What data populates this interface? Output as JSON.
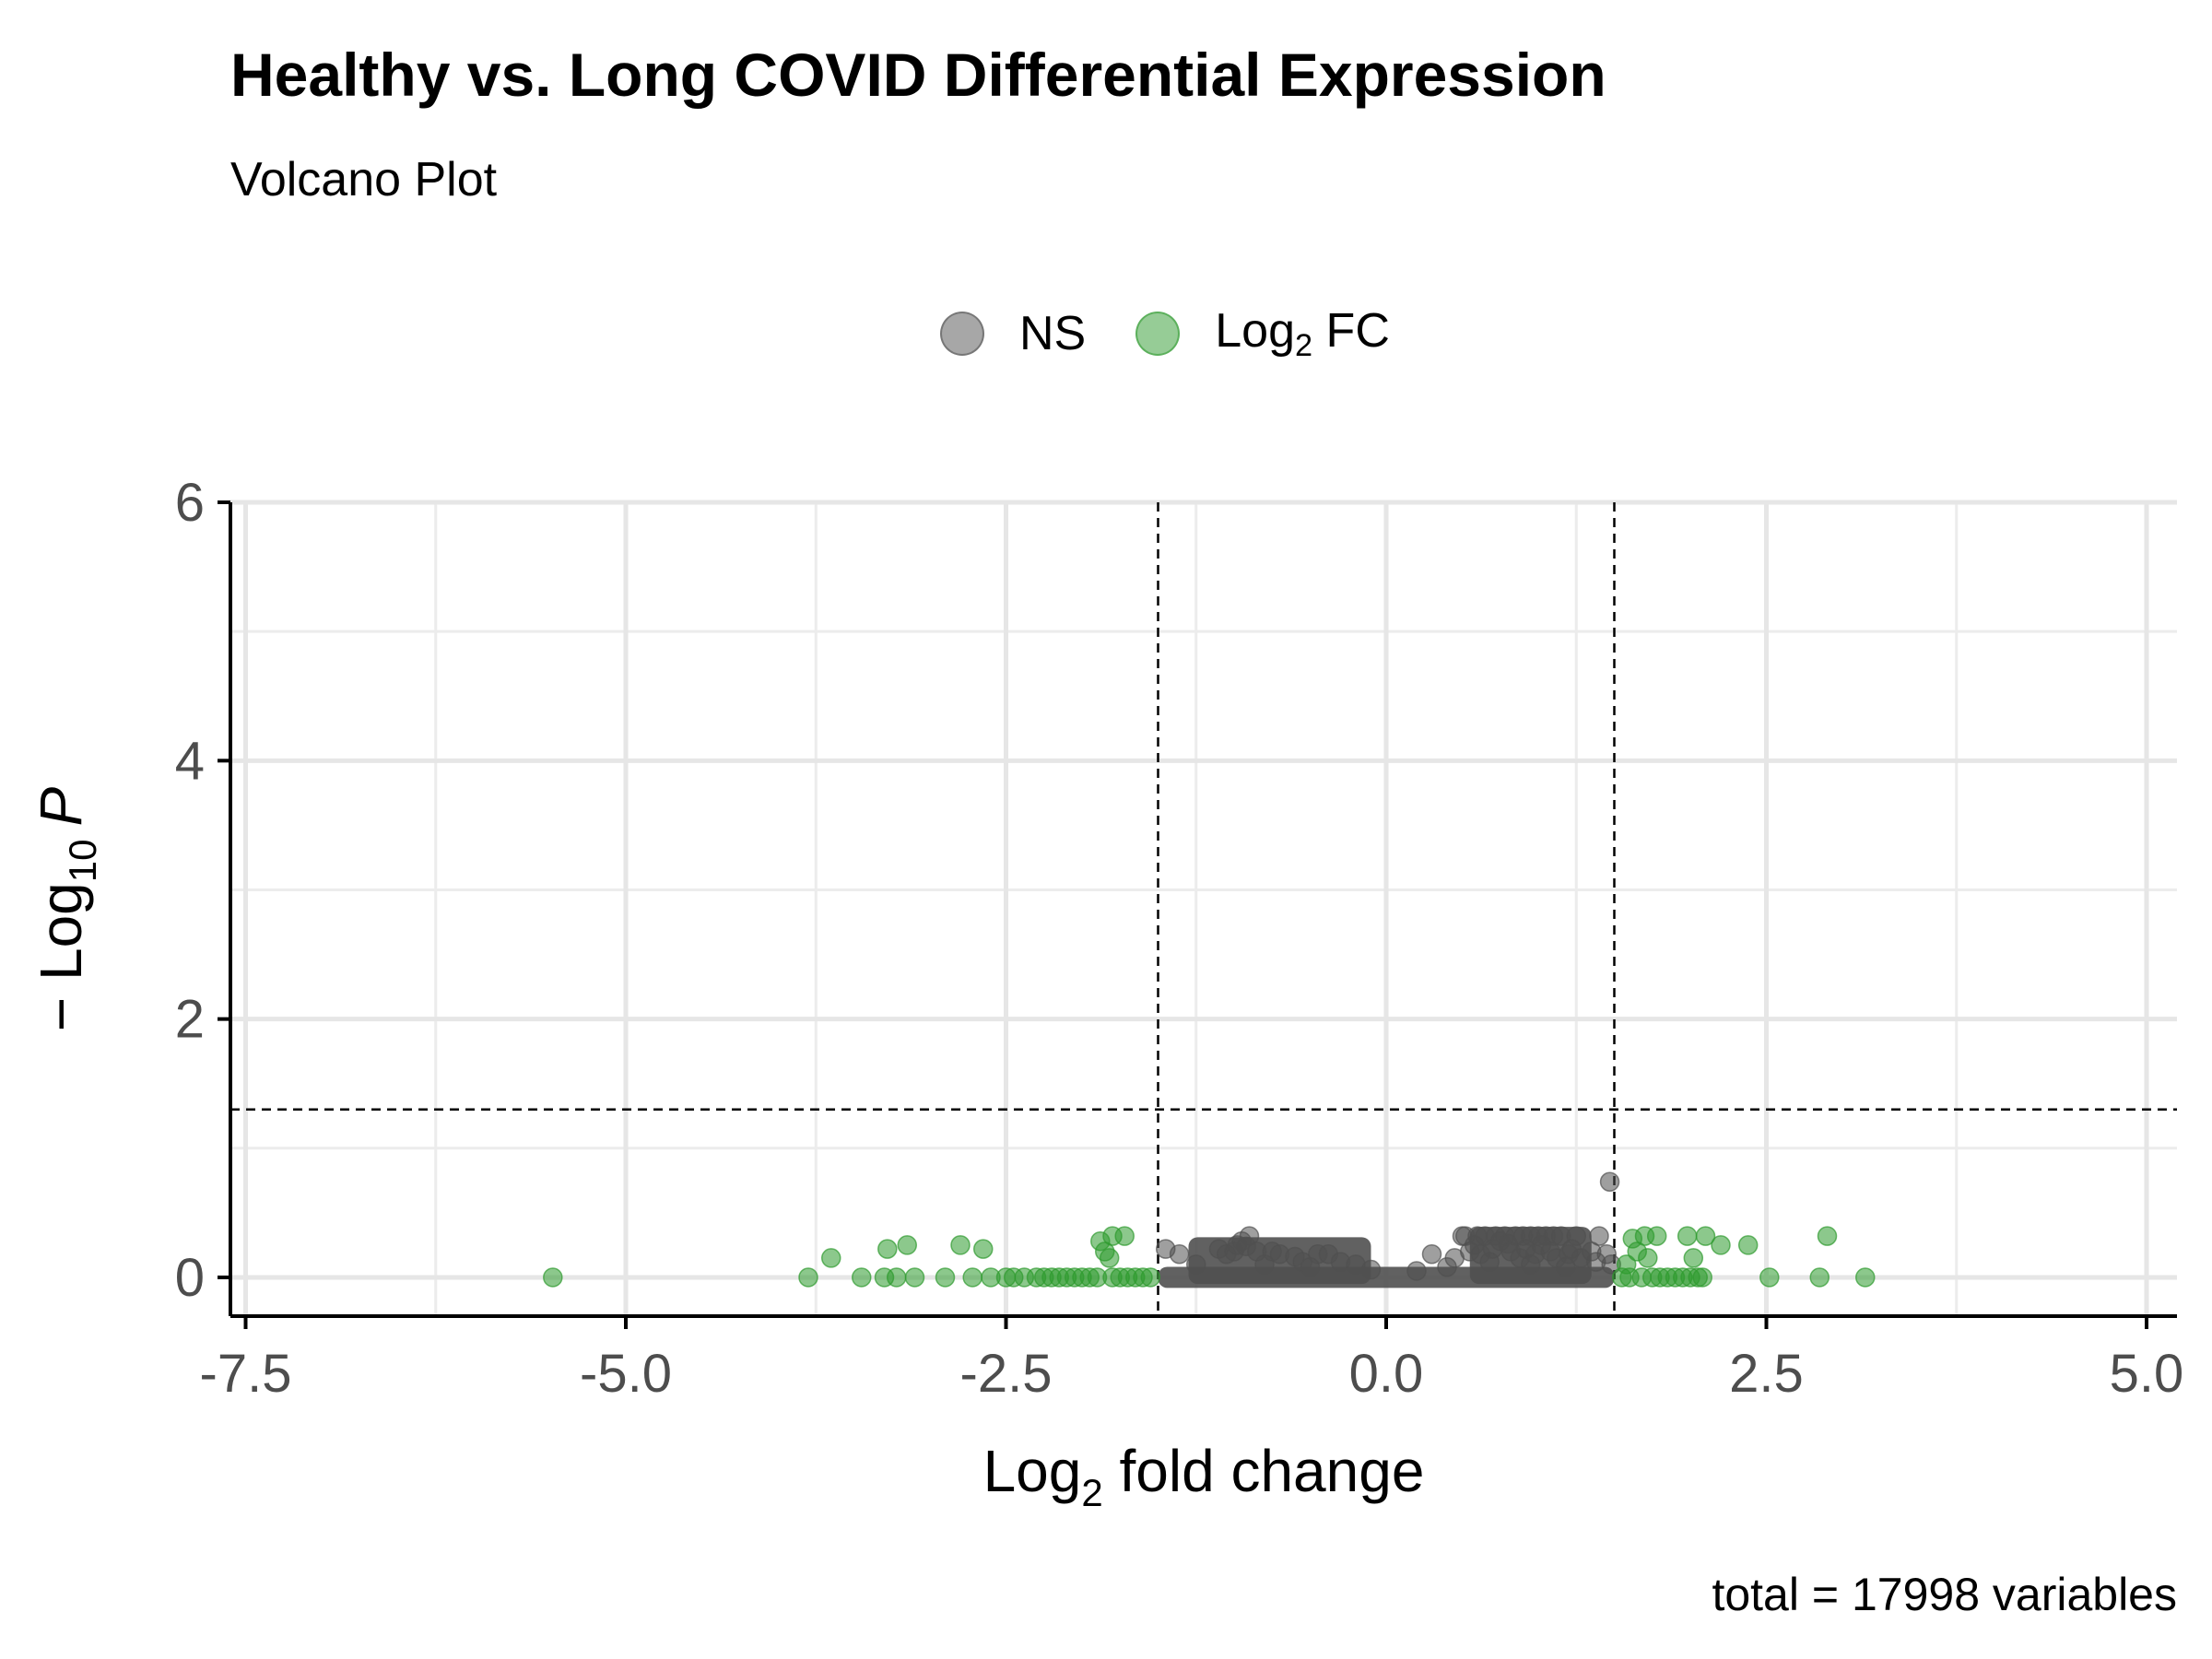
{
  "chart_data": {
    "type": "scatter",
    "title": "Healthy vs. Long COVID Differential Expression",
    "subtitle": "Volcano Plot",
    "caption": "total = 17998 variables",
    "xlabel": "Log2 fold change",
    "xlabel_main": "Log",
    "xlabel_sub": "2",
    "xlabel_rest": " fold change",
    "ylabel": "− Log10 P",
    "ylabel_main": "− Log",
    "ylabel_sub": "10",
    "ylabel_rest": "P",
    "xlim": [
      -7.6,
      5.2
    ],
    "ylim": [
      -0.3,
      6.0
    ],
    "x_ticks": [
      -7.5,
      -5.0,
      -2.5,
      0.0,
      2.5,
      5.0
    ],
    "x_tick_labels": [
      "-7.5",
      "-5.0",
      "-2.5",
      "0.0",
      "2.5",
      "5.0"
    ],
    "y_ticks": [
      0,
      2,
      4,
      6
    ],
    "y_tick_labels": [
      "0",
      "2",
      "4",
      "6"
    ],
    "grid": true,
    "legend_position": "top",
    "fc_cutoff": 1.5,
    "p_cutoff_line": 1.3,
    "series": [
      {
        "name": "NS",
        "color": "#505050",
        "dense_bands": [
          {
            "x": [
              -1.5,
              1.5
            ],
            "y": [
              -0.01,
              0.01
            ]
          },
          {
            "x": [
              0.55,
              1.35
            ],
            "y": [
              0.02,
              0.32
            ]
          },
          {
            "x": [
              -1.3,
              -0.1
            ],
            "y": [
              0.02,
              0.24
            ]
          }
        ],
        "points": [
          [
            1.47,
            0.74
          ],
          [
            0.5,
            0.32
          ],
          [
            0.52,
            0.32
          ],
          [
            0.6,
            0.32
          ],
          [
            0.65,
            0.32
          ],
          [
            0.72,
            0.32
          ],
          [
            0.78,
            0.32
          ],
          [
            0.85,
            0.32
          ],
          [
            0.9,
            0.32
          ],
          [
            0.95,
            0.32
          ],
          [
            1.0,
            0.32
          ],
          [
            1.05,
            0.32
          ],
          [
            1.1,
            0.32
          ],
          [
            1.15,
            0.32
          ],
          [
            1.25,
            0.32
          ],
          [
            1.4,
            0.32
          ],
          [
            -0.9,
            0.32
          ],
          [
            -0.95,
            0.28
          ],
          [
            -1.45,
            0.22
          ],
          [
            -1.36,
            0.18
          ],
          [
            -1.1,
            0.22
          ],
          [
            -1.05,
            0.18
          ],
          [
            -1.0,
            0.2
          ],
          [
            -0.98,
            0.25
          ],
          [
            -0.92,
            0.24
          ],
          [
            -0.85,
            0.2
          ],
          [
            -0.75,
            0.2
          ],
          [
            -0.7,
            0.18
          ],
          [
            -0.6,
            0.16
          ],
          [
            -0.55,
            0.12
          ],
          [
            -0.45,
            0.18
          ],
          [
            -0.38,
            0.18
          ],
          [
            -0.3,
            0.12
          ],
          [
            -0.2,
            0.1
          ],
          [
            -0.1,
            0.06
          ],
          [
            0.3,
            0.18
          ],
          [
            0.45,
            0.15
          ],
          [
            0.55,
            0.2
          ],
          [
            0.58,
            0.25
          ],
          [
            0.62,
            0.18
          ],
          [
            0.7,
            0.22
          ],
          [
            0.75,
            0.28
          ],
          [
            0.8,
            0.26
          ],
          [
            0.82,
            0.2
          ],
          [
            0.88,
            0.15
          ],
          [
            0.92,
            0.22
          ],
          [
            0.98,
            0.18
          ],
          [
            1.02,
            0.25
          ],
          [
            1.08,
            0.2
          ],
          [
            1.12,
            0.15
          ],
          [
            1.2,
            0.18
          ],
          [
            1.22,
            0.22
          ],
          [
            1.28,
            0.15
          ],
          [
            1.35,
            0.2
          ],
          [
            1.45,
            0.18
          ],
          [
            1.48,
            0.1
          ],
          [
            1.38,
            0.12
          ],
          [
            0.68,
            0.12
          ],
          [
            0.95,
            0.1
          ],
          [
            1.18,
            0.08
          ],
          [
            -1.25,
            0.1
          ],
          [
            -0.8,
            0.1
          ],
          [
            -0.5,
            0.08
          ],
          [
            0.2,
            0.05
          ],
          [
            0.4,
            0.08
          ]
        ]
      },
      {
        "name": "Log2 FC",
        "legend_main": "Log",
        "legend_sub": "2",
        "legend_rest": " FC",
        "color": "#2e9a2e",
        "points": [
          [
            -5.48,
            0.0
          ],
          [
            -3.8,
            0.0
          ],
          [
            -3.65,
            0.15
          ],
          [
            -3.45,
            0.0
          ],
          [
            -3.3,
            0.0
          ],
          [
            -3.28,
            0.22
          ],
          [
            -3.22,
            0.0
          ],
          [
            -3.15,
            0.25
          ],
          [
            -3.1,
            0.0
          ],
          [
            -2.9,
            0.0
          ],
          [
            -2.8,
            0.25
          ],
          [
            -2.72,
            0.0
          ],
          [
            -2.65,
            0.22
          ],
          [
            -2.6,
            0.0
          ],
          [
            -2.5,
            0.0
          ],
          [
            -2.45,
            0.0
          ],
          [
            -2.38,
            0.0
          ],
          [
            -2.3,
            0.0
          ],
          [
            -2.25,
            0.0
          ],
          [
            -2.2,
            0.0
          ],
          [
            -2.15,
            0.0
          ],
          [
            -2.1,
            0.0
          ],
          [
            -2.05,
            0.0
          ],
          [
            -2.0,
            0.0
          ],
          [
            -1.95,
            0.0
          ],
          [
            -1.9,
            0.0
          ],
          [
            -1.88,
            0.28
          ],
          [
            -1.85,
            0.2
          ],
          [
            -1.82,
            0.15
          ],
          [
            -1.8,
            0.32
          ],
          [
            -1.8,
            0.0
          ],
          [
            -1.75,
            0.0
          ],
          [
            -1.72,
            0.32
          ],
          [
            -1.7,
            0.0
          ],
          [
            -1.65,
            0.0
          ],
          [
            -1.6,
            0.0
          ],
          [
            -1.55,
            0.0
          ],
          [
            1.55,
            0.0
          ],
          [
            1.58,
            0.1
          ],
          [
            1.6,
            0.0
          ],
          [
            1.62,
            0.3
          ],
          [
            1.65,
            0.2
          ],
          [
            1.68,
            0.0
          ],
          [
            1.7,
            0.32
          ],
          [
            1.72,
            0.15
          ],
          [
            1.75,
            0.0
          ],
          [
            1.78,
            0.32
          ],
          [
            1.8,
            0.0
          ],
          [
            1.85,
            0.0
          ],
          [
            1.9,
            0.0
          ],
          [
            1.95,
            0.0
          ],
          [
            1.98,
            0.32
          ],
          [
            2.0,
            0.0
          ],
          [
            2.02,
            0.15
          ],
          [
            2.05,
            0.0
          ],
          [
            2.08,
            0.0
          ],
          [
            2.1,
            0.32
          ],
          [
            2.2,
            0.25
          ],
          [
            2.38,
            0.25
          ],
          [
            2.52,
            0.0
          ],
          [
            2.85,
            0.0
          ],
          [
            2.9,
            0.32
          ],
          [
            3.15,
            0.0
          ]
        ]
      }
    ]
  }
}
